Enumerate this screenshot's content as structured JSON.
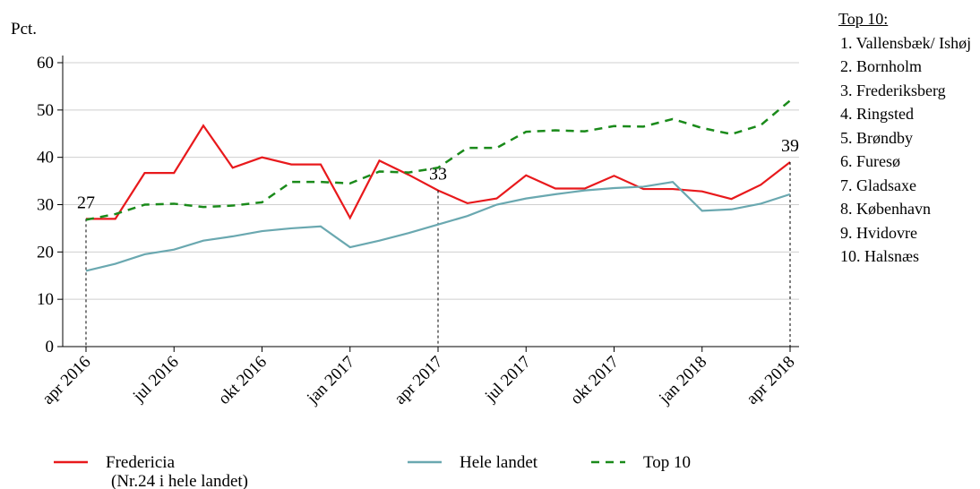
{
  "chart_data": {
    "type": "line",
    "y_label": "Pct.",
    "categories": [
      "apr 2016",
      null,
      null,
      "jul 2016",
      null,
      null,
      "okt 2016",
      null,
      null,
      "jan 2017",
      null,
      null,
      "apr 2017",
      null,
      null,
      "jul 2017",
      null,
      null,
      "okt 2017",
      null,
      null,
      "jan 2018",
      null,
      null,
      "apr 2018"
    ],
    "ylim": [
      0,
      60
    ],
    "yticks": [
      0,
      10,
      20,
      30,
      40,
      50,
      60
    ],
    "grid": true,
    "series": [
      {
        "name": "Fredericia",
        "legend_subtitle": "(Nr.24 i hele landet)",
        "color": "#e8191c",
        "dash": false,
        "values": [
          27,
          27,
          36.7,
          36.7,
          46.7,
          37.8,
          40,
          38.5,
          38.5,
          27.2,
          39.3,
          36.3,
          33,
          30.3,
          31.3,
          36.2,
          33.4,
          33.4,
          36.1,
          33.3,
          33.3,
          32.8,
          31.2,
          34.2,
          39
        ],
        "value_labels": [
          "27",
          null,
          null,
          null,
          null,
          null,
          null,
          null,
          null,
          null,
          null,
          null,
          "33",
          null,
          null,
          null,
          null,
          null,
          null,
          null,
          null,
          null,
          null,
          null,
          "39"
        ]
      },
      {
        "name": "Hele landet",
        "color": "#6aa8b0",
        "dash": false,
        "values": [
          16,
          17.5,
          19.5,
          20.5,
          22.4,
          23.3,
          24.4,
          25,
          25.4,
          21,
          22.4,
          24,
          25.8,
          27.6,
          30,
          31.3,
          32.2,
          33,
          33.5,
          33.8,
          34.8,
          28.7,
          29,
          30.2,
          32.2
        ]
      },
      {
        "name": "Top 10",
        "color": "#1a8a1a",
        "dash": true,
        "values": [
          26.8,
          28,
          30,
          30.2,
          29.5,
          29.8,
          30.5,
          34.8,
          34.8,
          34.5,
          37,
          36.8,
          37.8,
          42,
          42,
          45.4,
          45.7,
          45.5,
          46.6,
          46.5,
          48.1,
          46.2,
          44.9,
          46.8,
          52
        ]
      }
    ]
  },
  "side_list": {
    "title": "Top 10:",
    "items": [
      "1. Vallensbæk/ Ishøj",
      "2. Bornholm",
      "3. Frederiksberg",
      "4. Ringsted",
      "5. Brøndby",
      "6. Furesø",
      "7. Gladsaxe",
      "8. København",
      "9. Hvidovre",
      "10. Halsnæs"
    ]
  }
}
